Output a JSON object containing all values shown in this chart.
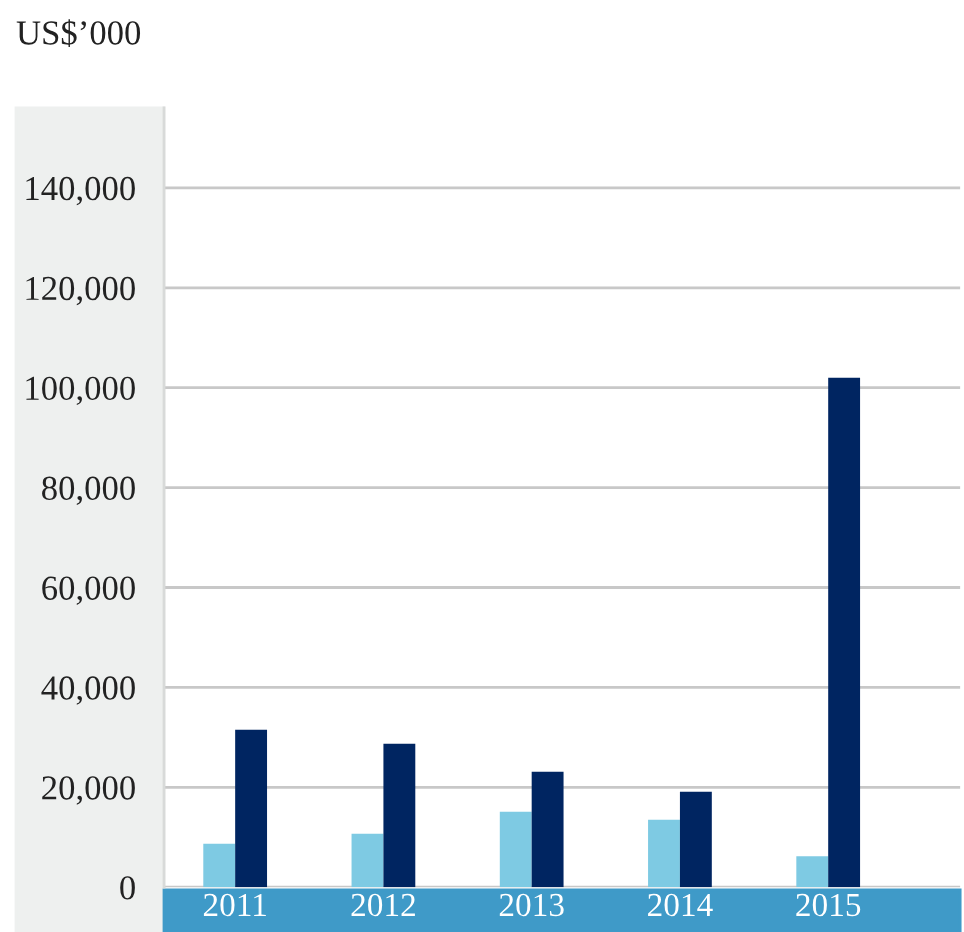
{
  "chart_data": {
    "type": "bar",
    "ylabel": "US$’000",
    "categories": [
      "2011",
      "2012",
      "2013",
      "2014",
      "2015"
    ],
    "series": [
      {
        "color": "#7ecae3",
        "values": [
          8700,
          10700,
          15100,
          13500,
          6200
        ]
      },
      {
        "color": "#002561",
        "values": [
          31500,
          28700,
          23100,
          19100,
          102000
        ]
      }
    ],
    "ylim": [
      0,
      156000
    ],
    "yticks": [
      {
        "value": 0,
        "label": "0"
      },
      {
        "value": 20000,
        "label": "20,000"
      },
      {
        "value": 40000,
        "label": "40,000"
      },
      {
        "value": 60000,
        "label": "60,000"
      },
      {
        "value": 80000,
        "label": "80,000"
      },
      {
        "value": 100000,
        "label": "100,000"
      },
      {
        "value": 120000,
        "label": "120,000"
      },
      {
        "value": 140000,
        "label": "140,000"
      }
    ],
    "grid": "y",
    "legend": false
  }
}
